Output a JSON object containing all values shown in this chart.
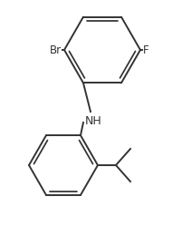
{
  "bg_color": "#ffffff",
  "line_color": "#333333",
  "label_color": "#333333",
  "font_size": 8.5,
  "line_width": 1.4,
  "br_label": "Br",
  "f_label": "F",
  "nh_label": "NH"
}
